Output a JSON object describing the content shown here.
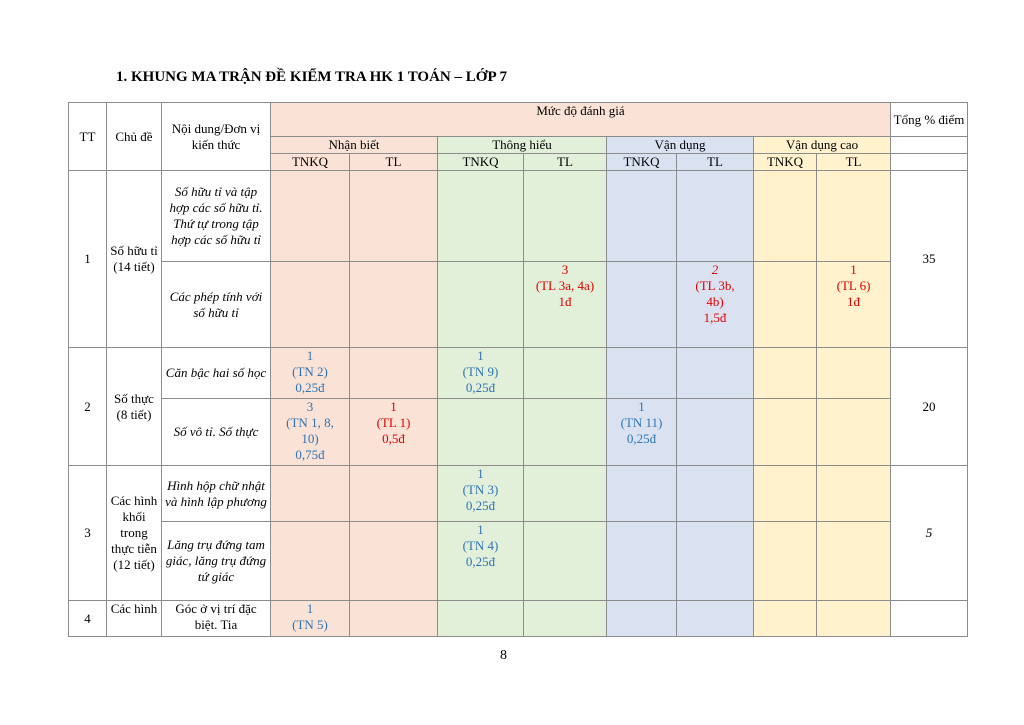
{
  "heading": "1. KHUNG MA TRẬN ĐỀ KIỂM TRA HK 1 TOÁN – LỚP 7",
  "header": {
    "tt": "TT",
    "chu_de": "Chủ đề",
    "noi_dung": "Nội dung/Đơn vị kiến thức",
    "muc_do": "Mức độ đánh giá",
    "tong": "Tổng % điểm",
    "levels": [
      "Nhận biết",
      "Thông hiểu",
      "Vận dụng",
      "Vận dụng cao"
    ],
    "tnkq": "TNKQ",
    "tl": "TL"
  },
  "rows": {
    "r1": {
      "tt": "1",
      "chu_de": "Số hữu tỉ (14 tiết)",
      "content_a": "Số hữu tỉ và tập hợp các số hữu tỉ. Thứ tự trong tập hợp các số hữu tỉ",
      "content_b": "Các phép tính với số hữu tỉ",
      "th_tl": [
        "3",
        "(TL 3a, 4a)",
        "1đ"
      ],
      "vd_tl": [
        "2",
        "(TL 3b,",
        "4b)",
        "1,5đ"
      ],
      "vdc_tl": [
        "1",
        "(TL 6)",
        "1đ"
      ],
      "tong": "35"
    },
    "r2": {
      "tt": "2",
      "chu_de": "Số thực (8 tiết)",
      "content_a": "Căn bậc hai số học",
      "content_b": "Số vô tỉ. Số thực",
      "a_nb_tnkq": [
        "1",
        "(TN 2)",
        "0,25đ"
      ],
      "a_th_tnkq": [
        "1",
        "(TN 9)",
        "0,25đ"
      ],
      "b_nb_tnkq": [
        "3",
        "(TN 1, 8,",
        "10)",
        "0,75đ"
      ],
      "b_nb_tl": [
        "1",
        "(TL 1)",
        "0,5đ"
      ],
      "b_vd_tnkq": [
        "1",
        "(TN 11)",
        "0,25đ"
      ],
      "tong": "20"
    },
    "r3": {
      "tt": "3",
      "chu_de": "Các hình khối trong thực tiễn (12 tiết)",
      "content_a": "Hình hộp chữ nhật và hình lập phương",
      "content_b": "Lăng trụ đứng tam giác, lăng trụ đứng tứ giác",
      "a_th_tnkq": [
        "1",
        "(TN 3)",
        "0,25đ"
      ],
      "b_th_tnkq": [
        "1",
        "(TN 4)",
        "0,25đ"
      ],
      "tong": "5"
    },
    "r4": {
      "tt": "4",
      "chu_de": "Các hình",
      "content": "Góc ở vị trí đặc biệt. Tia",
      "nb_tnkq": [
        "1",
        "(TN 5)"
      ]
    }
  },
  "page_number": "8"
}
